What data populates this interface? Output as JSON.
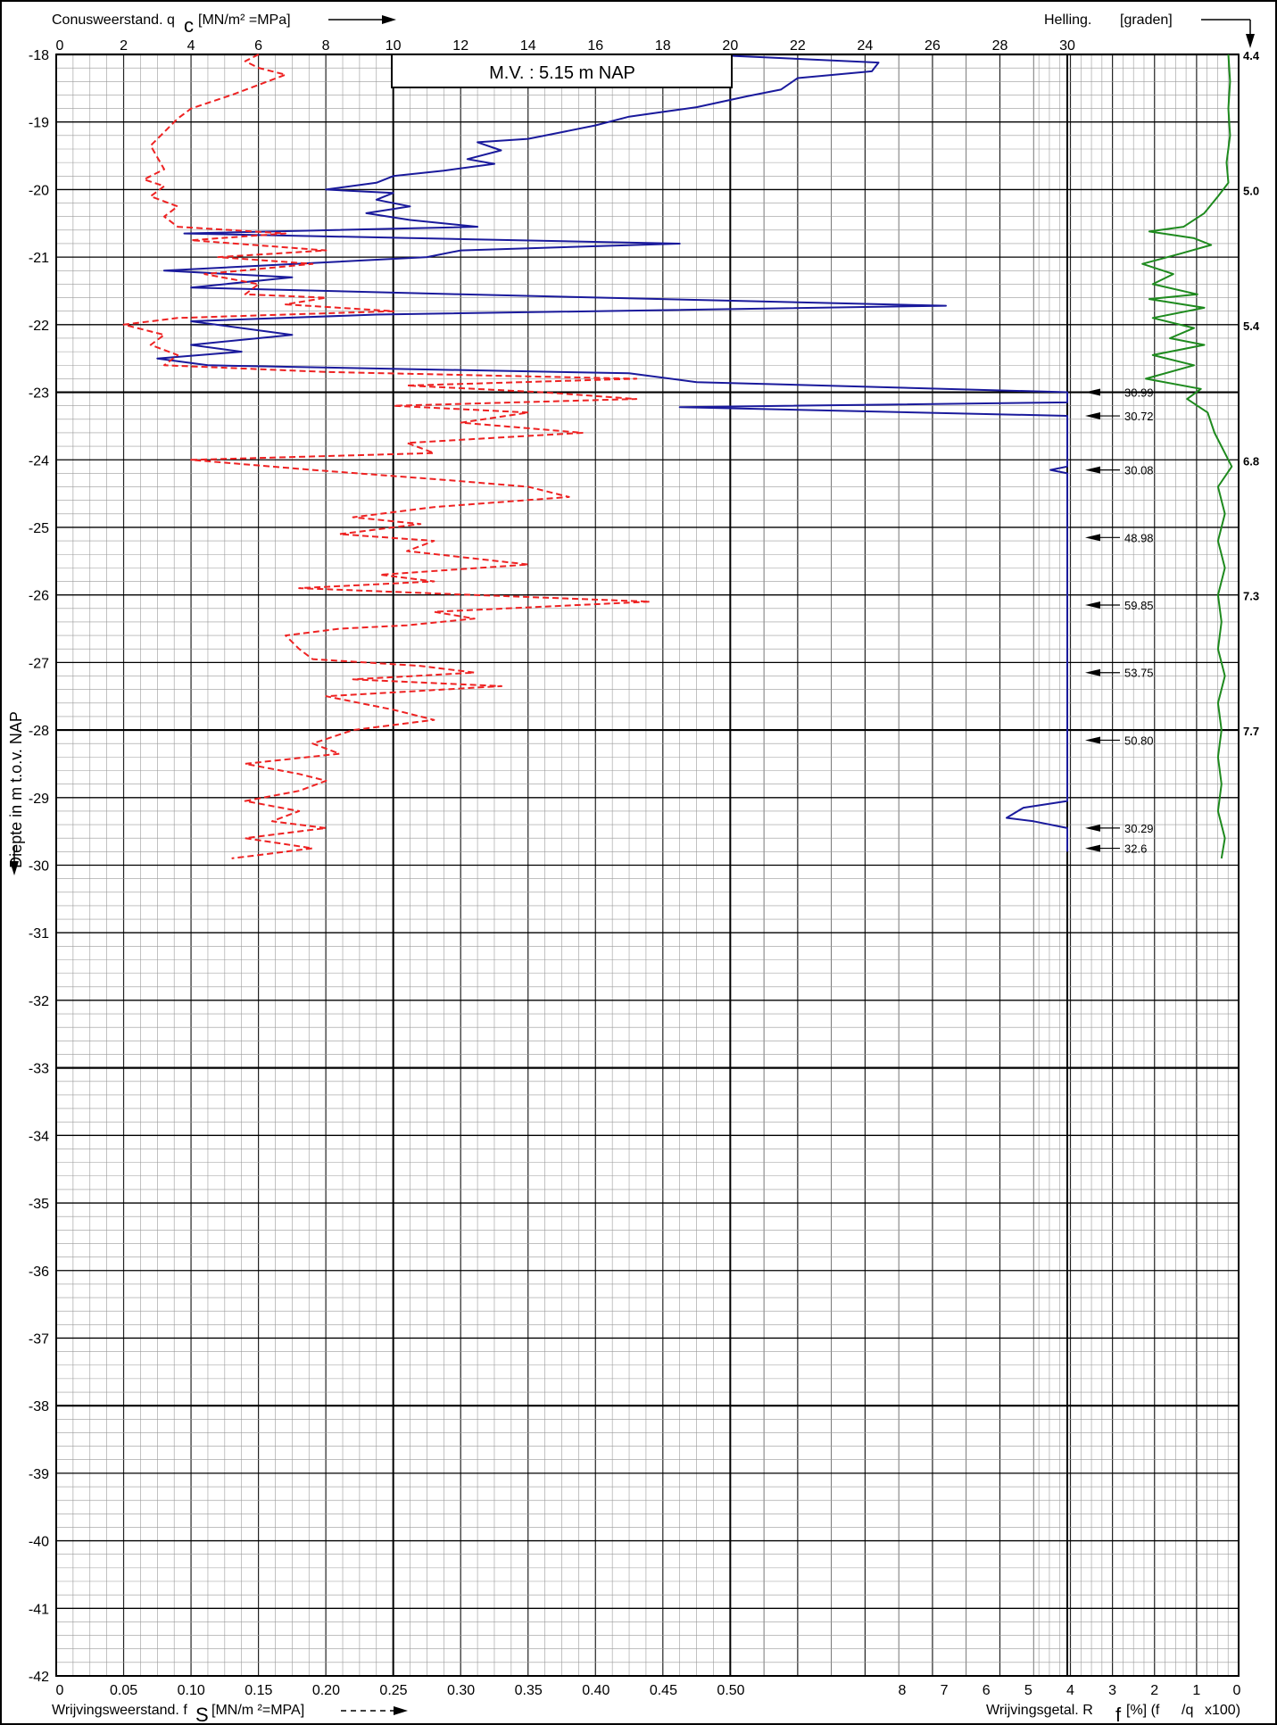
{
  "chart_data": {
    "type": "line",
    "header": {
      "top_left": "Conusweerstand. q",
      "top_left_sub": "c",
      "top_left_unit": "[MN/m² =MPa]",
      "top_right": "Helling.",
      "top_right_unit": "[graden]",
      "bottom_left": "Wrijvingsweerstand. f",
      "bottom_left_sub": "S",
      "bottom_left_unit": "[MN/m ²=MPA]",
      "bottom_right": "Wrijvingsgetal. R",
      "bottom_right_sub": "f",
      "bottom_right_unit": "[%]  (f",
      "bottom_right_unit2": "/q",
      "bottom_right_unit3": "x100)",
      "ylabel": "Diepte in m t.o.v. NAP",
      "mv_label": "M.V. :  5.15     m   NAP"
    },
    "y_axis": {
      "range": [
        -18,
        -42
      ],
      "ticks": [
        "-18",
        "-19",
        "-20",
        "-21",
        "-22",
        "-23",
        "-24",
        "-25",
        "-26",
        "-27",
        "-28",
        "-29",
        "-30",
        "-31",
        "-32",
        "-33",
        "-34",
        "-35",
        "-36",
        "-37",
        "-38",
        "-39",
        "-40",
        "-41",
        "-42"
      ]
    },
    "qc_axis": {
      "range": [
        0,
        30
      ],
      "ticks": [
        "0",
        "2",
        "4",
        "6",
        "8",
        "10",
        "12",
        "14",
        "16",
        "18",
        "20",
        "22",
        "24",
        "26",
        "28",
        "30"
      ]
    },
    "fs_axis": {
      "range": [
        0,
        0.5
      ],
      "ticks": [
        "0",
        "0.05",
        "0.10",
        "0.15",
        "0.20",
        "0.25",
        "0.30",
        "0.35",
        "0.40",
        "0.45",
        "0.50"
      ]
    },
    "rf_axis": {
      "range": [
        8,
        0
      ],
      "ticks": [
        "8",
        "7",
        "6",
        "5",
        "4",
        "3",
        "2",
        "1",
        "0"
      ]
    },
    "helling_labels": [
      {
        "depth": -18,
        "value": "4.4"
      },
      {
        "depth": -20,
        "value": "5.0"
      },
      {
        "depth": -22,
        "value": "5.4"
      },
      {
        "depth": -24,
        "value": "6.8"
      },
      {
        "depth": -26,
        "value": "7.3"
      },
      {
        "depth": -28,
        "value": "7.7"
      }
    ],
    "qc_off_scale": [
      {
        "depth": -23.0,
        "value": "30.99"
      },
      {
        "depth": -23.35,
        "value": "30.72"
      },
      {
        "depth": -24.15,
        "value": "30.08"
      },
      {
        "depth": -25.15,
        "value": "48.98"
      },
      {
        "depth": -26.15,
        "value": "59.85"
      },
      {
        "depth": -27.15,
        "value": "53.75"
      },
      {
        "depth": -28.15,
        "value": "50.80"
      },
      {
        "depth": -29.45,
        "value": "30.29"
      },
      {
        "depth": -29.75,
        "value": "32.6"
      }
    ],
    "series": [
      {
        "name": "qc",
        "color": "#1a1a9c",
        "unit": "MPa",
        "points": [
          [
            20.0,
            -18.02
          ],
          [
            24.4,
            -18.12
          ],
          [
            24.2,
            -18.25
          ],
          [
            22.0,
            -18.35
          ],
          [
            21.5,
            -18.52
          ],
          [
            20.5,
            -18.62
          ],
          [
            19.0,
            -18.78
          ],
          [
            17.0,
            -18.92
          ],
          [
            16.0,
            -19.05
          ],
          [
            15.0,
            -19.15
          ],
          [
            14.0,
            -19.25
          ],
          [
            12.5,
            -19.3
          ],
          [
            13.2,
            -19.42
          ],
          [
            12.2,
            -19.55
          ],
          [
            13.0,
            -19.62
          ],
          [
            11.5,
            -19.72
          ],
          [
            10.0,
            -19.8
          ],
          [
            9.5,
            -19.9
          ],
          [
            8.0,
            -20.0
          ],
          [
            10.0,
            -20.05
          ],
          [
            9.5,
            -20.15
          ],
          [
            10.5,
            -20.25
          ],
          [
            9.2,
            -20.35
          ],
          [
            10.5,
            -20.45
          ],
          [
            12.5,
            -20.55
          ],
          [
            3.8,
            -20.65
          ],
          [
            18.5,
            -20.8
          ],
          [
            12.0,
            -20.9
          ],
          [
            11.0,
            -21.0
          ],
          [
            3.2,
            -21.2
          ],
          [
            7.0,
            -21.3
          ],
          [
            4.0,
            -21.45
          ],
          [
            12.0,
            -21.55
          ],
          [
            26.4,
            -21.72
          ],
          [
            9.5,
            -21.85
          ],
          [
            4.0,
            -21.95
          ],
          [
            7.0,
            -22.15
          ],
          [
            4.0,
            -22.3
          ],
          [
            5.5,
            -22.4
          ],
          [
            3.0,
            -22.5
          ],
          [
            4.5,
            -22.6
          ],
          [
            17.0,
            -22.72
          ],
          [
            19.0,
            -22.85
          ],
          [
            30.0,
            -23.0
          ],
          [
            30.0,
            -23.15
          ],
          [
            18.5,
            -23.22
          ],
          [
            30.0,
            -23.35
          ],
          [
            30.0,
            -24.1
          ],
          [
            29.5,
            -24.15
          ],
          [
            30.0,
            -24.2
          ],
          [
            30.0,
            -29.05
          ],
          [
            28.7,
            -29.15
          ],
          [
            28.2,
            -29.3
          ],
          [
            29.0,
            -29.35
          ],
          [
            30.0,
            -29.45
          ],
          [
            30.0,
            -29.8
          ]
        ]
      },
      {
        "name": "fs",
        "color": "#ee2222",
        "unit": "MPa",
        "points": [
          [
            0.15,
            -18.0
          ],
          [
            0.14,
            -18.1
          ],
          [
            0.15,
            -18.2
          ],
          [
            0.17,
            -18.3
          ],
          [
            0.15,
            -18.45
          ],
          [
            0.13,
            -18.6
          ],
          [
            0.1,
            -18.8
          ],
          [
            0.09,
            -18.95
          ],
          [
            0.07,
            -19.35
          ],
          [
            0.08,
            -19.7
          ],
          [
            0.065,
            -19.85
          ],
          [
            0.08,
            -19.95
          ],
          [
            0.07,
            -20.1
          ],
          [
            0.09,
            -20.25
          ],
          [
            0.08,
            -20.4
          ],
          [
            0.09,
            -20.55
          ],
          [
            0.17,
            -20.65
          ],
          [
            0.1,
            -20.75
          ],
          [
            0.2,
            -20.9
          ],
          [
            0.12,
            -21.0
          ],
          [
            0.19,
            -21.1
          ],
          [
            0.11,
            -21.25
          ],
          [
            0.15,
            -21.4
          ],
          [
            0.14,
            -21.55
          ],
          [
            0.2,
            -21.6
          ],
          [
            0.17,
            -21.7
          ],
          [
            0.25,
            -21.8
          ],
          [
            0.09,
            -21.9
          ],
          [
            0.05,
            -22.0
          ],
          [
            0.08,
            -22.15
          ],
          [
            0.07,
            -22.3
          ],
          [
            0.09,
            -22.45
          ],
          [
            0.08,
            -22.6
          ],
          [
            0.2,
            -22.7
          ],
          [
            0.43,
            -22.8
          ],
          [
            0.26,
            -22.9
          ],
          [
            0.36,
            -23.0
          ],
          [
            0.43,
            -23.1
          ],
          [
            0.25,
            -23.2
          ],
          [
            0.35,
            -23.3
          ],
          [
            0.3,
            -23.45
          ],
          [
            0.39,
            -23.6
          ],
          [
            0.26,
            -23.75
          ],
          [
            0.28,
            -23.9
          ],
          [
            0.1,
            -24.0
          ],
          [
            0.19,
            -24.15
          ],
          [
            0.29,
            -24.3
          ],
          [
            0.35,
            -24.4
          ],
          [
            0.38,
            -24.55
          ],
          [
            0.28,
            -24.7
          ],
          [
            0.22,
            -24.85
          ],
          [
            0.27,
            -24.95
          ],
          [
            0.21,
            -25.1
          ],
          [
            0.28,
            -25.2
          ],
          [
            0.26,
            -25.35
          ],
          [
            0.35,
            -25.55
          ],
          [
            0.24,
            -25.7
          ],
          [
            0.28,
            -25.8
          ],
          [
            0.18,
            -25.9
          ],
          [
            0.31,
            -26.0
          ],
          [
            0.44,
            -26.1
          ],
          [
            0.28,
            -26.25
          ],
          [
            0.31,
            -26.35
          ],
          [
            0.26,
            -26.45
          ],
          [
            0.21,
            -26.5
          ],
          [
            0.17,
            -26.6
          ],
          [
            0.18,
            -26.8
          ],
          [
            0.19,
            -26.95
          ],
          [
            0.27,
            -27.05
          ],
          [
            0.31,
            -27.15
          ],
          [
            0.22,
            -27.25
          ],
          [
            0.33,
            -27.35
          ],
          [
            0.2,
            -27.5
          ],
          [
            0.25,
            -27.7
          ],
          [
            0.28,
            -27.85
          ],
          [
            0.22,
            -28.0
          ],
          [
            0.19,
            -28.2
          ],
          [
            0.21,
            -28.35
          ],
          [
            0.14,
            -28.5
          ],
          [
            0.18,
            -28.65
          ],
          [
            0.2,
            -28.75
          ],
          [
            0.18,
            -28.9
          ],
          [
            0.14,
            -29.05
          ],
          [
            0.18,
            -29.2
          ],
          [
            0.16,
            -29.35
          ],
          [
            0.2,
            -29.45
          ],
          [
            0.14,
            -29.6
          ],
          [
            0.19,
            -29.75
          ],
          [
            0.13,
            -29.9
          ]
        ]
      },
      {
        "name": "helling",
        "color": "#1e8a1e",
        "unit": "graden",
        "points": [
          [
            0.3,
            -18.0
          ],
          [
            0.25,
            -18.4
          ],
          [
            0.3,
            -18.8
          ],
          [
            0.25,
            -19.2
          ],
          [
            0.35,
            -19.6
          ],
          [
            0.3,
            -19.9
          ],
          [
            0.6,
            -20.1
          ],
          [
            1.0,
            -20.35
          ],
          [
            1.6,
            -20.55
          ],
          [
            2.6,
            -20.62
          ],
          [
            1.3,
            -20.72
          ],
          [
            0.8,
            -20.82
          ],
          [
            1.7,
            -20.95
          ],
          [
            2.8,
            -21.1
          ],
          [
            1.9,
            -21.25
          ],
          [
            2.5,
            -21.4
          ],
          [
            1.2,
            -21.55
          ],
          [
            2.6,
            -21.62
          ],
          [
            1.0,
            -21.75
          ],
          [
            2.5,
            -21.9
          ],
          [
            1.3,
            -22.05
          ],
          [
            2.0,
            -22.2
          ],
          [
            1.0,
            -22.3
          ],
          [
            2.5,
            -22.45
          ],
          [
            1.3,
            -22.6
          ],
          [
            2.7,
            -22.8
          ],
          [
            1.1,
            -22.95
          ],
          [
            1.5,
            -23.1
          ],
          [
            0.9,
            -23.3
          ],
          [
            0.7,
            -23.6
          ],
          [
            0.4,
            -23.9
          ],
          [
            0.2,
            -24.1
          ],
          [
            0.6,
            -24.4
          ],
          [
            0.4,
            -24.8
          ],
          [
            0.6,
            -25.2
          ],
          [
            0.4,
            -25.6
          ],
          [
            0.6,
            -26.0
          ],
          [
            0.5,
            -26.4
          ],
          [
            0.6,
            -26.8
          ],
          [
            0.4,
            -27.2
          ],
          [
            0.6,
            -27.6
          ],
          [
            0.5,
            -28.0
          ],
          [
            0.6,
            -28.4
          ],
          [
            0.5,
            -28.8
          ],
          [
            0.6,
            -29.2
          ],
          [
            0.4,
            -29.6
          ],
          [
            0.5,
            -29.9
          ]
        ]
      }
    ]
  }
}
